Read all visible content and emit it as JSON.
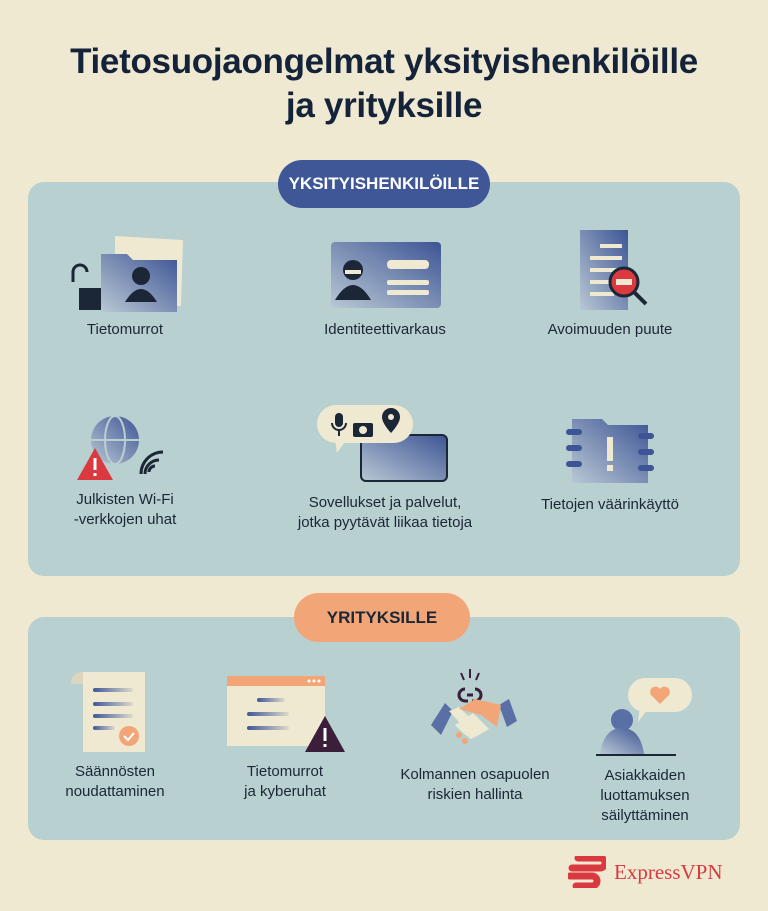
{
  "title": {
    "line1": "Tietosuojaongelmat yksityishenkilöille",
    "line2": "ja yrityksille"
  },
  "individuals": {
    "heading": "YKSITYISHENKILÖILLE",
    "items": [
      {
        "label": "Tietomurrot",
        "icon": "folder-unlocked-icon"
      },
      {
        "label": "Identiteettivarkaus",
        "icon": "id-card-thief-icon"
      },
      {
        "label": "Avoimuuden puute",
        "icon": "document-magnifier-icon"
      },
      {
        "label1": "Julkisten Wi-Fi",
        "label2": "-verkkojen uhat",
        "icon": "globe-wifi-warning-icon"
      },
      {
        "label1": "Sovellukset ja palvelut,",
        "label2": "jotka pyytävät liikaa tietoja",
        "icon": "phone-permissions-icon"
      },
      {
        "label": "Tietojen väärinkäyttö",
        "icon": "folder-alert-icon"
      }
    ]
  },
  "businesses": {
    "heading": "YRITYKSILLE",
    "items": [
      {
        "label1": "Säännösten",
        "label2": "noudattaminen",
        "icon": "certificate-icon"
      },
      {
        "label1": "Tietomurrot",
        "label2": "ja kyberuhat",
        "icon": "browser-warning-icon"
      },
      {
        "label1": "Kolmannen osapuolen",
        "label2": "riskien hallinta",
        "icon": "handshake-broken-link-icon"
      },
      {
        "label1": "Asiakkaiden",
        "label2": "luottamuksen",
        "label3": "säilyttäminen",
        "icon": "person-heart-icon"
      }
    ]
  },
  "brand": {
    "name": "ExpressVPN"
  },
  "colors": {
    "background": "#efe9d2",
    "panel": "#b8d0d0",
    "blue_pill": "#3f5797",
    "orange_pill": "#f2a678",
    "brand_red": "#d9393f"
  }
}
